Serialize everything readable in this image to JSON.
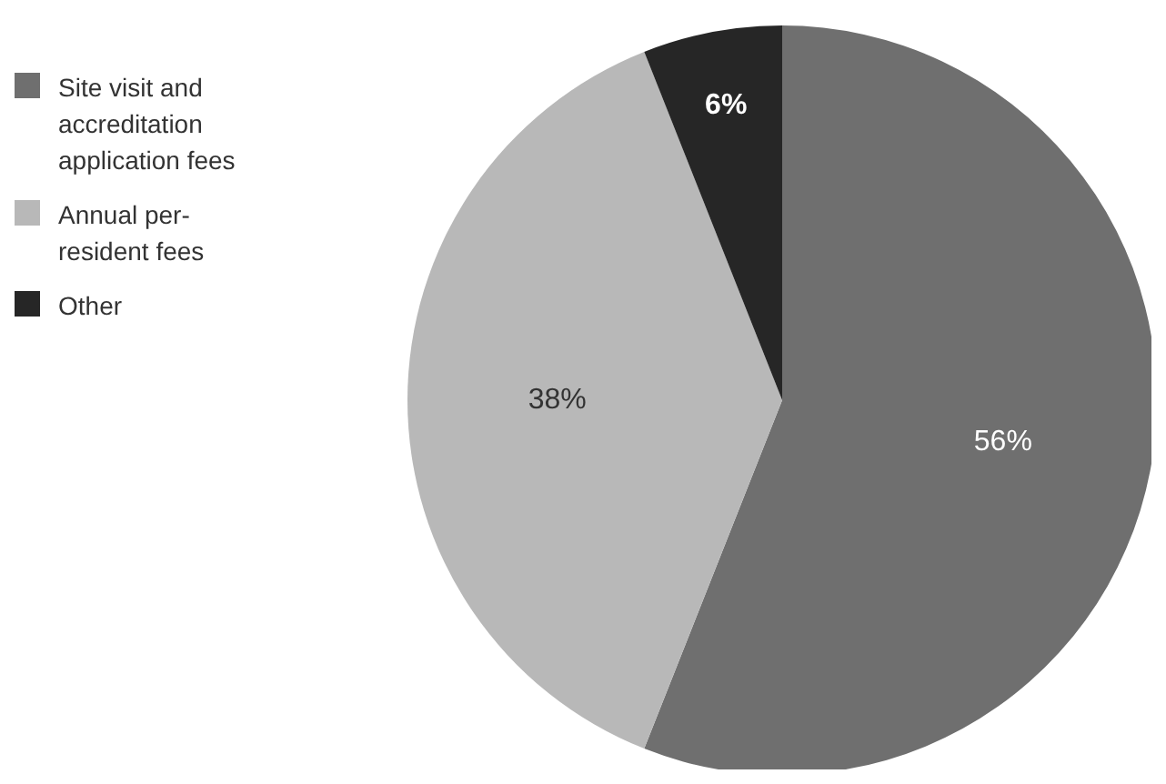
{
  "chart_data": {
    "type": "pie",
    "categories": [
      "Site visit and accreditation application fees",
      "Annual per-resident fees",
      "Other"
    ],
    "values": [
      56,
      38,
      6
    ],
    "colors": [
      "#6f6f6f",
      "#b8b8b8",
      "#262626"
    ],
    "value_labels": [
      "56%",
      "38%",
      "6%"
    ],
    "legend": "left"
  }
}
